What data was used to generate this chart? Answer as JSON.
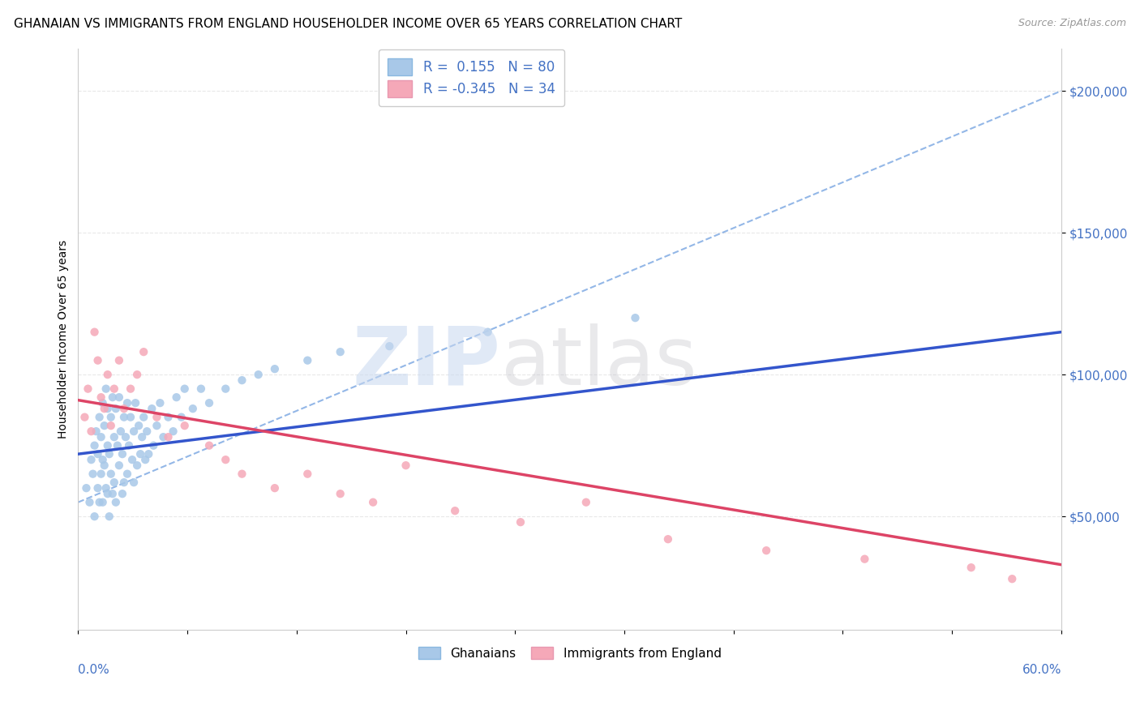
{
  "title": "GHANAIAN VS IMMIGRANTS FROM ENGLAND HOUSEHOLDER INCOME OVER 65 YEARS CORRELATION CHART",
  "source": "Source: ZipAtlas.com",
  "ylabel": "Householder Income Over 65 years",
  "legend_blue_r": "R =  0.155",
  "legend_blue_n": "N = 80",
  "legend_pink_r": "R = -0.345",
  "legend_pink_n": "N = 34",
  "legend_label_blue": "Ghanaians",
  "legend_label_pink": "Immigrants from England",
  "xlim": [
    0.0,
    0.6
  ],
  "ylim": [
    10000,
    215000
  ],
  "blue_color": "#a8c8e8",
  "pink_color": "#f5a8b8",
  "blue_line_color": "#3355cc",
  "pink_line_color": "#dd4466",
  "blue_dash_color": "#6699dd",
  "grid_color": "#e8e8e8",
  "tick_color": "#4472c4",
  "blue_scatter_x": [
    0.005,
    0.007,
    0.008,
    0.009,
    0.01,
    0.01,
    0.011,
    0.012,
    0.012,
    0.013,
    0.013,
    0.014,
    0.014,
    0.015,
    0.015,
    0.015,
    0.016,
    0.016,
    0.017,
    0.017,
    0.018,
    0.018,
    0.018,
    0.019,
    0.019,
    0.02,
    0.02,
    0.021,
    0.021,
    0.022,
    0.022,
    0.023,
    0.023,
    0.024,
    0.025,
    0.025,
    0.026,
    0.027,
    0.027,
    0.028,
    0.028,
    0.029,
    0.03,
    0.03,
    0.031,
    0.032,
    0.033,
    0.034,
    0.034,
    0.035,
    0.036,
    0.037,
    0.038,
    0.039,
    0.04,
    0.041,
    0.042,
    0.043,
    0.045,
    0.046,
    0.048,
    0.05,
    0.052,
    0.055,
    0.058,
    0.06,
    0.063,
    0.065,
    0.07,
    0.075,
    0.08,
    0.09,
    0.1,
    0.11,
    0.12,
    0.14,
    0.16,
    0.19,
    0.25,
    0.34
  ],
  "blue_scatter_y": [
    60000,
    55000,
    70000,
    65000,
    75000,
    50000,
    80000,
    72000,
    60000,
    85000,
    55000,
    78000,
    65000,
    90000,
    70000,
    55000,
    82000,
    68000,
    95000,
    60000,
    75000,
    58000,
    88000,
    72000,
    50000,
    85000,
    65000,
    92000,
    58000,
    78000,
    62000,
    88000,
    55000,
    75000,
    92000,
    68000,
    80000,
    72000,
    58000,
    85000,
    62000,
    78000,
    90000,
    65000,
    75000,
    85000,
    70000,
    80000,
    62000,
    90000,
    68000,
    82000,
    72000,
    78000,
    85000,
    70000,
    80000,
    72000,
    88000,
    75000,
    82000,
    90000,
    78000,
    85000,
    80000,
    92000,
    85000,
    95000,
    88000,
    95000,
    90000,
    95000,
    98000,
    100000,
    102000,
    105000,
    108000,
    110000,
    115000,
    120000
  ],
  "pink_scatter_x": [
    0.004,
    0.006,
    0.008,
    0.01,
    0.012,
    0.014,
    0.016,
    0.018,
    0.02,
    0.022,
    0.025,
    0.028,
    0.032,
    0.036,
    0.04,
    0.048,
    0.055,
    0.065,
    0.08,
    0.09,
    0.1,
    0.12,
    0.14,
    0.16,
    0.18,
    0.2,
    0.23,
    0.27,
    0.31,
    0.36,
    0.42,
    0.48,
    0.545,
    0.57
  ],
  "pink_scatter_y": [
    85000,
    95000,
    80000,
    115000,
    105000,
    92000,
    88000,
    100000,
    82000,
    95000,
    105000,
    88000,
    95000,
    100000,
    108000,
    85000,
    78000,
    82000,
    75000,
    70000,
    65000,
    60000,
    65000,
    58000,
    55000,
    68000,
    52000,
    48000,
    55000,
    42000,
    38000,
    35000,
    32000,
    28000
  ],
  "title_fontsize": 11,
  "source_fontsize": 9,
  "tick_fontsize": 11,
  "legend_fontsize": 12,
  "ylabel_fontsize": 10
}
